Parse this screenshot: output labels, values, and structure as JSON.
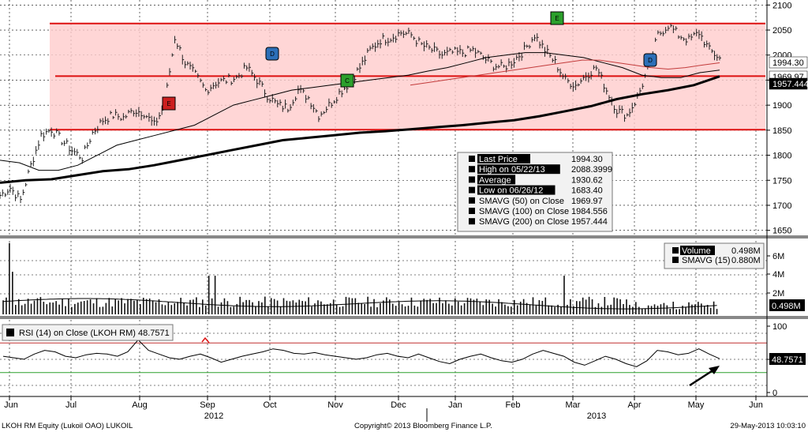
{
  "footer": {
    "left": "LKOH RM Equity (Lukoil OAO) LUKOIL",
    "center": "Copyright© 2013 Bloomberg Finance L.P.",
    "right": "29-May-2013 10:03:10"
  },
  "chart_data": [
    {
      "type": "line",
      "panel": "price",
      "y_ticks": [
        "2100",
        "2050",
        "2000",
        "1950",
        "1900",
        "1850",
        "1800",
        "1750",
        "1700",
        "1650"
      ],
      "ylim": [
        1640,
        2110
      ],
      "x_labels": [
        "Jun",
        "Jul",
        "Aug",
        "Sep",
        "Oct",
        "Nov",
        "Dec",
        "Jan",
        "Feb",
        "Mar",
        "Apr",
        "May",
        "Jun"
      ],
      "year_labels": [
        "2012",
        "2013"
      ],
      "channel_lines": [
        2063,
        1958,
        1851
      ],
      "series": [
        {
          "name": "Last Price",
          "color": "#000000",
          "style": "bars",
          "values": [
            1720,
            1735,
            1710,
            1780,
            1840,
            1852,
            1830,
            1810,
            1795,
            1845,
            1870,
            1880,
            1875,
            1890,
            1885,
            1860,
            1900,
            2035,
            1985,
            1960,
            1930,
            1945,
            1950,
            1955,
            1975,
            1950,
            1920,
            1900,
            1895,
            1930,
            1915,
            1880,
            1900,
            1925,
            1945,
            1975,
            2010,
            2030,
            2035,
            2045,
            2040,
            2020,
            2010,
            2000,
            2005,
            2005,
            2010,
            1995,
            1980,
            1975,
            1990,
            2010,
            2040,
            2010,
            1985,
            1950,
            1940,
            1960,
            1975,
            1930,
            1890,
            1880,
            1915,
            1970,
            2040,
            2060,
            2040,
            2030,
            2045,
            2010,
            1994.3
          ]
        },
        {
          "name": "SMAVG (50) on Close",
          "color": "#000000",
          "style": "thin",
          "values": [
            1790,
            1785,
            1770,
            1770,
            1780,
            1800,
            1820,
            1830,
            1840,
            1850,
            1860,
            1880,
            1900,
            1910,
            1920,
            1930,
            1935,
            1940,
            1945,
            1950,
            1955,
            1960,
            1968,
            1975,
            1985,
            1995,
            2000,
            2005,
            2005,
            2000,
            1995,
            1985,
            1975,
            1960,
            1955,
            1955,
            1965,
            1969.97
          ]
        },
        {
          "name": "SMAVG (100) on Close",
          "color": "#c23b3b",
          "style": "thin",
          "values": [
            1940,
            1945,
            1950,
            1955,
            1960,
            1965,
            1970,
            1975,
            1980,
            1985,
            1990,
            1990,
            1985,
            1980,
            1975,
            1972,
            1975,
            1980,
            1984.556
          ]
        },
        {
          "name": "SMAVG (200) on Close",
          "color": "#000000",
          "style": "thick",
          "values": [
            1745,
            1750,
            1752,
            1760,
            1768,
            1772,
            1780,
            1790,
            1800,
            1810,
            1820,
            1830,
            1835,
            1840,
            1845,
            1848,
            1852,
            1856,
            1860,
            1865,
            1870,
            1878,
            1888,
            1898,
            1912,
            1922,
            1930,
            1940,
            1957.444
          ]
        }
      ],
      "price_tags": [
        {
          "text": "1994.30",
          "bg": "#ffffff",
          "fg": "#000000"
        },
        {
          "text": "1969.97",
          "bg": "#ffffff",
          "fg": "#000000"
        },
        {
          "text": "1957.444",
          "bg": "#000000",
          "fg": "#ffffff"
        }
      ],
      "event_markers": [
        {
          "letter": "E",
          "type": "earnings",
          "color": "#cc1f1f"
        },
        {
          "letter": "D",
          "type": "dividend",
          "color": "#2c6fb8"
        },
        {
          "letter": "C",
          "type": "corporate",
          "color": "#2ca02c"
        },
        {
          "letter": "E",
          "type": "earnings",
          "color": "#2ca02c"
        },
        {
          "letter": "D",
          "type": "dividend",
          "color": "#2c6fb8"
        }
      ],
      "legend": [
        {
          "label": "Last Price",
          "value": "1994.30",
          "highlight": true
        },
        {
          "label": "High on 05/22/13",
          "value": "2088.3999",
          "highlight": true
        },
        {
          "label": "Average",
          "value": "1930.62",
          "highlight": true
        },
        {
          "label": "Low on 06/26/12",
          "value": "1683.40",
          "highlight": true
        },
        {
          "label": "SMAVG (50)  on Close",
          "value": "1969.97",
          "highlight": false
        },
        {
          "label": "SMAVG (100)  on Close",
          "value": "1984.556",
          "highlight": false
        },
        {
          "label": "SMAVG (200)  on Close",
          "value": "1957.444",
          "highlight": false
        }
      ]
    },
    {
      "type": "bar",
      "panel": "volume",
      "y_ticks": [
        "6M",
        "4M",
        "2M"
      ],
      "ylim_millions": [
        0,
        7.5
      ],
      "last_value_tag": "0.498M",
      "legend": [
        {
          "label": "Volume",
          "value": "0.498M"
        },
        {
          "label": "SMAVG (15)",
          "value": "0.880M"
        }
      ]
    },
    {
      "type": "line",
      "panel": "rsi",
      "title": "RSI (14) on Close (LKOH RM) 48.7571",
      "y_ticks": [
        "100",
        "50",
        "0"
      ],
      "ylim": [
        0,
        100
      ],
      "upper_level": 70,
      "lower_level": 30,
      "last_value_tag": "48.7571",
      "values": [
        52,
        50,
        48,
        55,
        60,
        58,
        52,
        50,
        54,
        56,
        55,
        52,
        58,
        74,
        60,
        55,
        50,
        48,
        52,
        55,
        50,
        44,
        48,
        52,
        55,
        58,
        62,
        60,
        56,
        55,
        57,
        54,
        52,
        50,
        48,
        50,
        54,
        56,
        52,
        50,
        55,
        50,
        45,
        42,
        48,
        52,
        55,
        50,
        46,
        44,
        48,
        55,
        60,
        56,
        52,
        44,
        40,
        46,
        52,
        48,
        42,
        38,
        46,
        60,
        58,
        54,
        56,
        62,
        55,
        48.7571
      ]
    }
  ]
}
